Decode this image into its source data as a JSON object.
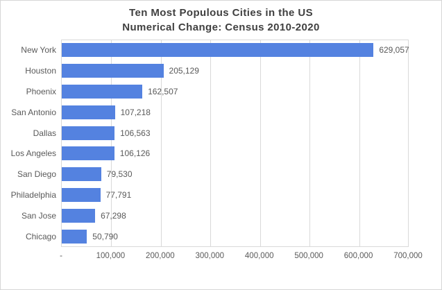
{
  "window": {
    "background": "#FFFFFF",
    "border_color": "#D6D6D6"
  },
  "title": {
    "line1": "Ten Most Populous Cities in the US",
    "line2": "Numerical Change: Census 2010-2020",
    "color": "#404040"
  },
  "chart_data": {
    "type": "bar",
    "orientation": "horizontal",
    "title": "Ten Most Populous Cities in the US — Numerical Change: Census 2010-2020",
    "categories": [
      "New York",
      "Houston",
      "Phoenix",
      "San Antonio",
      "Dallas",
      "Los Angeles",
      "San Diego",
      "Philadelphia",
      "San Jose",
      "Chicago"
    ],
    "values": [
      629057,
      205129,
      162507,
      107218,
      106563,
      106126,
      79530,
      77791,
      67298,
      50790
    ],
    "value_labels": [
      "629,057",
      "205,129",
      "162,507",
      "107,218",
      "106,563",
      "106,126",
      "79,530",
      "77,791",
      "67,298",
      "50,790"
    ],
    "x_tick_labels": [
      "-",
      "100,000",
      "200,000",
      "300,000",
      "400,000",
      "500,000",
      "600,000",
      "700,000"
    ],
    "xlim": [
      0,
      700000
    ],
    "x_tick_step": 100000,
    "grid": true,
    "legend": false,
    "xlabel": "",
    "ylabel": "",
    "bar_color": "#5482E0",
    "grid_color": "#D9D9D9",
    "label_color": "#595959",
    "title_color": "#404040"
  }
}
